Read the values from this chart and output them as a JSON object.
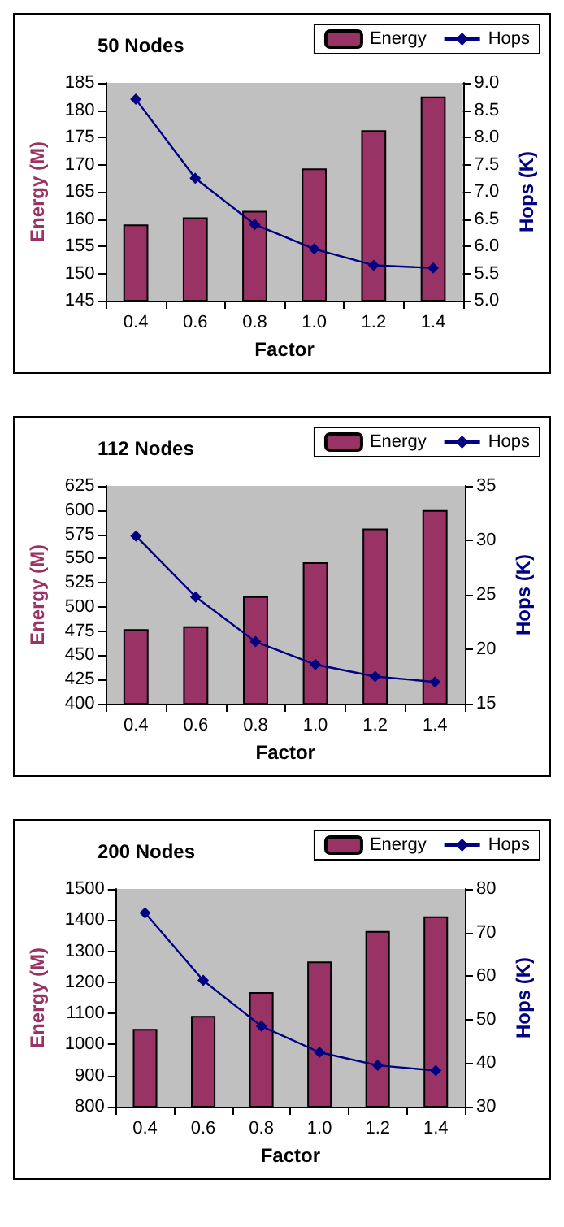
{
  "chart_data": [
    {
      "type": "bar",
      "title": "50 Nodes",
      "xlabel": "Factor",
      "ylabel": "Energy (M)",
      "y2label": "Hops (K)",
      "categories": [
        "0.4",
        "0.6",
        "0.8",
        "1.0",
        "1.2",
        "1.4"
      ],
      "series": [
        {
          "name": "Energy",
          "color": "#993366",
          "values": [
            159,
            160.3,
            161.5,
            169.3,
            176.3,
            182.5
          ]
        },
        {
          "name": "Hops",
          "type": "line",
          "axis": "y2",
          "color": "#000080",
          "values": [
            8.7,
            7.25,
            6.4,
            5.95,
            5.65,
            5.6
          ]
        }
      ],
      "ylim": [
        145,
        185
      ],
      "yticks": [
        145,
        150,
        155,
        160,
        165,
        170,
        175,
        180,
        185
      ],
      "y2lim": [
        5,
        9
      ],
      "y2ticks": [
        {
          "value": 5,
          "label": "5.0"
        },
        {
          "value": 5.5,
          "label": "5.5"
        },
        {
          "value": 6,
          "label": "6.0"
        },
        {
          "value": 6.5,
          "label": "6.5"
        },
        {
          "value": 7,
          "label": "7.0"
        },
        {
          "value": 7.5,
          "label": "7.5"
        },
        {
          "value": 8,
          "label": "8.0"
        },
        {
          "value": 8.5,
          "label": "8.5"
        },
        {
          "value": 9,
          "label": "9.0"
        }
      ],
      "legend": "top right",
      "marker": "diamond"
    },
    {
      "type": "bar",
      "title": "112 Nodes",
      "xlabel": "Factor",
      "ylabel": "Energy (M)",
      "y2label": "Hops (K)",
      "categories": [
        "0.4",
        "0.6",
        "0.8",
        "1.0",
        "1.2",
        "1.4"
      ],
      "series": [
        {
          "name": "Energy",
          "color": "#993366",
          "values": [
            477,
            480,
            511,
            546,
            581,
            600
          ]
        },
        {
          "name": "Hops",
          "type": "line",
          "axis": "y2",
          "color": "#000080",
          "values": [
            30.4,
            24.8,
            20.7,
            18.6,
            17.5,
            17.0
          ]
        }
      ],
      "ylim": [
        400,
        625
      ],
      "yticks": [
        400,
        425,
        450,
        475,
        500,
        525,
        550,
        575,
        600,
        625
      ],
      "y2lim": [
        15,
        35
      ],
      "y2ticks": [
        15,
        20,
        25,
        30,
        35
      ],
      "legend": "top right",
      "marker": "diamond"
    },
    {
      "type": "bar",
      "title": "200 Nodes",
      "xlabel": "Factor",
      "ylabel": "Energy (M)",
      "y2label": "Hops (K)",
      "categories": [
        "0.4",
        "0.6",
        "0.8",
        "1.0",
        "1.2",
        "1.4"
      ],
      "series": [
        {
          "name": "Energy",
          "color": "#993366",
          "values": [
            1050,
            1092,
            1168,
            1267,
            1365,
            1412
          ]
        },
        {
          "name": "Hops",
          "type": "line",
          "axis": "y2",
          "color": "#000080",
          "values": [
            74.5,
            59,
            48.5,
            42.5,
            39.5,
            38.3
          ]
        }
      ],
      "ylim": [
        800,
        1500
      ],
      "yticks": [
        800,
        900,
        1000,
        1100,
        1200,
        1300,
        1400,
        1500
      ],
      "y2lim": [
        30,
        80
      ],
      "y2ticks": [
        30,
        40,
        50,
        60,
        70,
        80
      ],
      "legend": "top right",
      "marker": "diamond"
    }
  ]
}
